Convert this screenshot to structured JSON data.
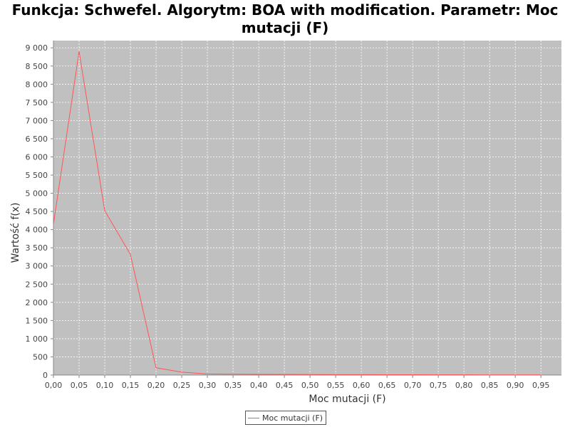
{
  "chart_data": {
    "type": "line",
    "title": "Funkcja: Schwefel. Algorytm: BOA with modification. Parametr: Moc mutacji (F)",
    "xlabel": "Moc mutacji (F)",
    "ylabel": "Wartość f(x)",
    "xlim": [
      0,
      0.99
    ],
    "ylim": [
      0,
      9200
    ],
    "x_ticks": [
      "0,00",
      "0,05",
      "0,10",
      "0,15",
      "0,20",
      "0,25",
      "0,30",
      "0,35",
      "0,40",
      "0,45",
      "0,50",
      "0,55",
      "0,60",
      "0,65",
      "0,70",
      "0,75",
      "0,80",
      "0,85",
      "0,90",
      "0,95"
    ],
    "y_ticks": [
      "0",
      "500",
      "1 000",
      "1 500",
      "2 000",
      "2 500",
      "3 000",
      "3 500",
      "4 000",
      "4 500",
      "5 000",
      "5 500",
      "6 000",
      "6 500",
      "7 000",
      "7 500",
      "8 000",
      "8 500",
      "9 000"
    ],
    "grid": true,
    "legend_position": "bottom-center",
    "plot_background": "#c0c0c0",
    "series": [
      {
        "name": "Moc mutacji (F)",
        "color": "#ff5555",
        "x": [
          0.0,
          0.05,
          0.1,
          0.15,
          0.2,
          0.25,
          0.3,
          0.35,
          0.4,
          0.45,
          0.5,
          0.55,
          0.6,
          0.65,
          0.7,
          0.75,
          0.8,
          0.85,
          0.9,
          0.95
        ],
        "y": [
          4150,
          8900,
          4520,
          3320,
          200,
          80,
          30,
          25,
          20,
          18,
          15,
          12,
          12,
          10,
          10,
          8,
          8,
          6,
          6,
          5
        ]
      }
    ]
  }
}
